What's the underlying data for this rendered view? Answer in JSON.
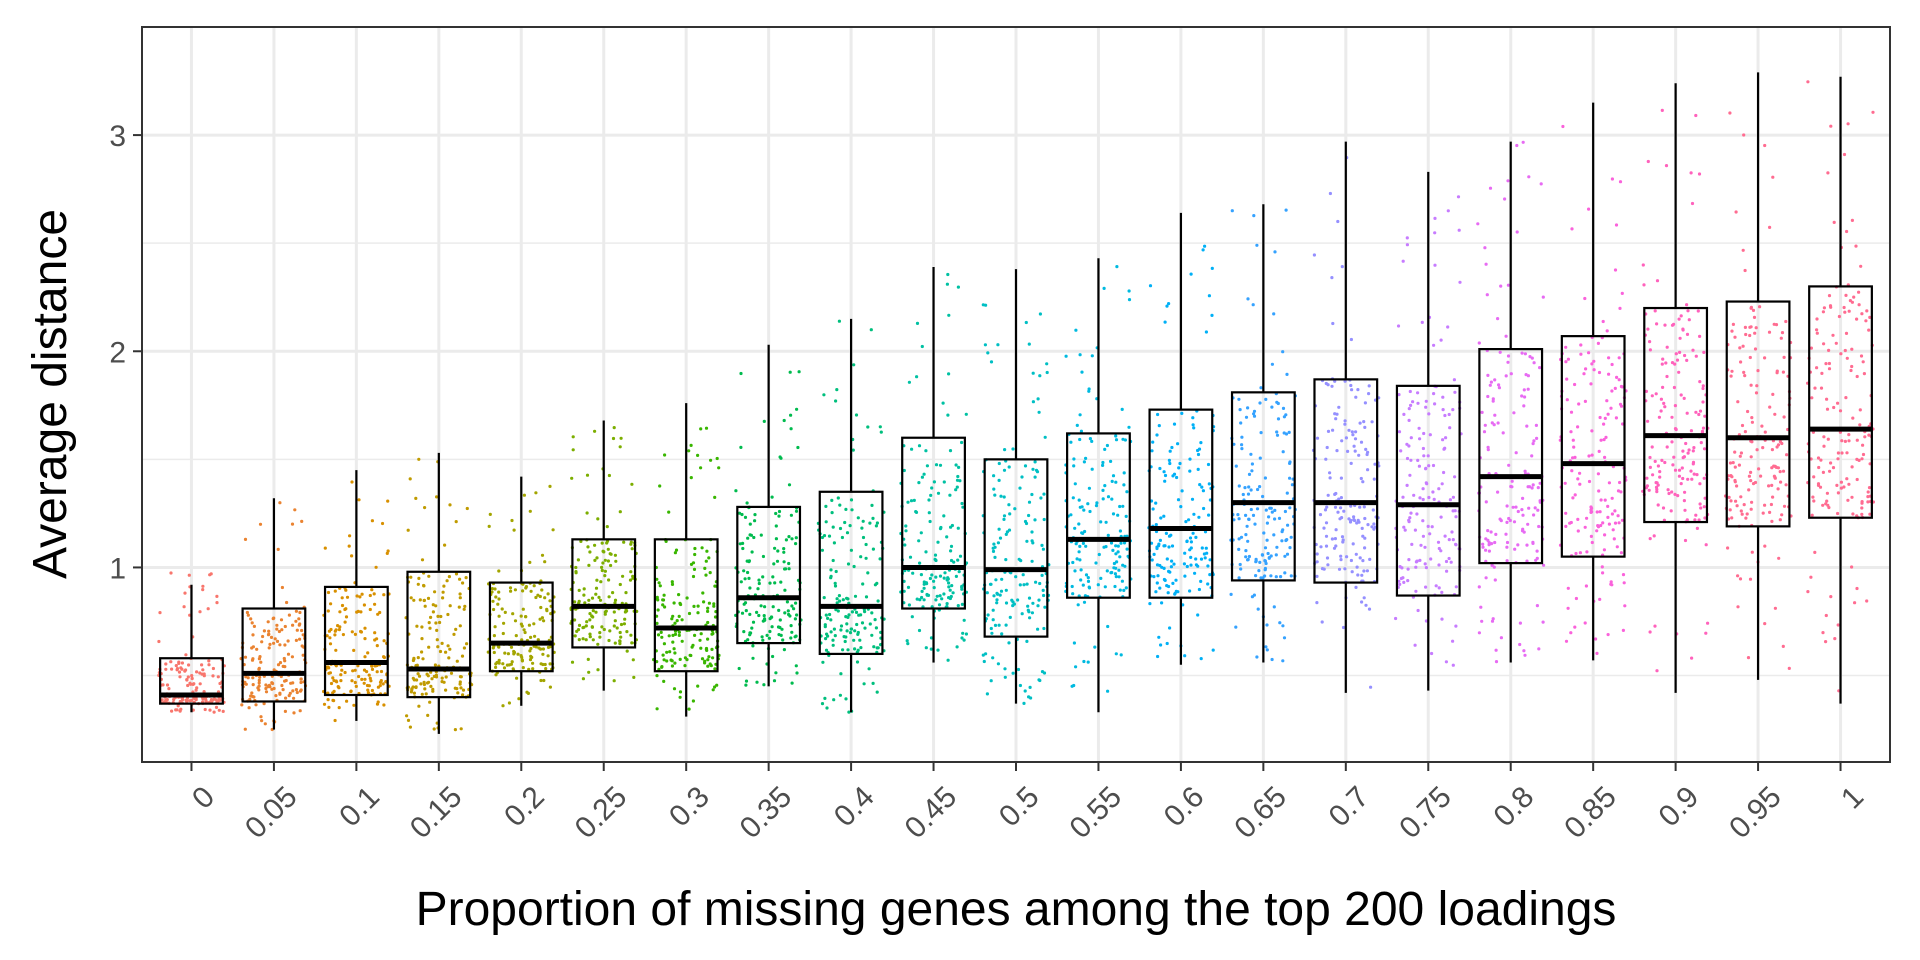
{
  "chart_data": {
    "type": "box",
    "xlabel": "Proportion of missing genes among the top 200 loadings",
    "ylabel": "Average distance",
    "ylim": [
      0.1,
      3.5
    ],
    "yticks": [
      "1",
      "2",
      "3"
    ],
    "grid": true,
    "legend": "none",
    "jitter_points": true,
    "categories": [
      "0",
      "0.05",
      "0.1",
      "0.15",
      "0.2",
      "0.25",
      "0.3",
      "0.35",
      "0.4",
      "0.45",
      "0.5",
      "0.55",
      "0.6",
      "0.65",
      "0.7",
      "0.75",
      "0.8",
      "0.85",
      "0.9",
      "0.95",
      "1"
    ],
    "colors": [
      "#F8766D",
      "#EA8331",
      "#D89000",
      "#C09B00",
      "#A3A500",
      "#7CAE00",
      "#39B600",
      "#00BB4E",
      "#00BF7D",
      "#00C1A3",
      "#00BFC4",
      "#00BAE0",
      "#00B0F6",
      "#35A2FF",
      "#9590FF",
      "#C77CFF",
      "#E76BF3",
      "#FA62DB",
      "#FF62BC",
      "#FF6C91",
      "#FF6C91"
    ],
    "boxes": [
      {
        "category": "0",
        "whisker_low": 0.33,
        "q1": 0.37,
        "median": 0.41,
        "q3": 0.58,
        "whisker_high": 0.92,
        "jitter_max": 1.07
      },
      {
        "category": "0.05",
        "whisker_low": 0.25,
        "q1": 0.38,
        "median": 0.51,
        "q3": 0.81,
        "whisker_high": 1.32,
        "jitter_max": 1.32
      },
      {
        "category": "0.1",
        "whisker_low": 0.29,
        "q1": 0.41,
        "median": 0.56,
        "q3": 0.91,
        "whisker_high": 1.45,
        "jitter_max": 1.45
      },
      {
        "category": "0.15",
        "whisker_low": 0.23,
        "q1": 0.4,
        "median": 0.53,
        "q3": 0.98,
        "whisker_high": 1.53,
        "jitter_max": 1.53
      },
      {
        "category": "0.2",
        "whisker_low": 0.36,
        "q1": 0.52,
        "median": 0.65,
        "q3": 0.93,
        "whisker_high": 1.42,
        "jitter_max": 1.42
      },
      {
        "category": "0.25",
        "whisker_low": 0.43,
        "q1": 0.63,
        "median": 0.82,
        "q3": 1.13,
        "whisker_high": 1.68,
        "jitter_max": 1.68
      },
      {
        "category": "0.3",
        "whisker_low": 0.31,
        "q1": 0.52,
        "median": 0.72,
        "q3": 1.13,
        "whisker_high": 1.76,
        "jitter_max": 1.76
      },
      {
        "category": "0.35",
        "whisker_low": 0.45,
        "q1": 0.65,
        "median": 0.86,
        "q3": 1.28,
        "whisker_high": 2.03,
        "jitter_max": 2.03
      },
      {
        "category": "0.4",
        "whisker_low": 0.33,
        "q1": 0.6,
        "median": 0.82,
        "q3": 1.35,
        "whisker_high": 2.15,
        "jitter_max": 2.15
      },
      {
        "category": "0.45",
        "whisker_low": 0.56,
        "q1": 0.81,
        "median": 1.0,
        "q3": 1.6,
        "whisker_high": 2.39,
        "jitter_max": 2.39
      },
      {
        "category": "0.5",
        "whisker_low": 0.37,
        "q1": 0.68,
        "median": 0.99,
        "q3": 1.5,
        "whisker_high": 2.38,
        "jitter_max": 2.38
      },
      {
        "category": "0.55",
        "whisker_low": 0.33,
        "q1": 0.86,
        "median": 1.13,
        "q3": 1.62,
        "whisker_high": 2.43,
        "jitter_max": 2.43
      },
      {
        "category": "0.6",
        "whisker_low": 0.55,
        "q1": 0.86,
        "median": 1.18,
        "q3": 1.73,
        "whisker_high": 2.64,
        "jitter_max": 2.64
      },
      {
        "category": "0.65",
        "whisker_low": 0.56,
        "q1": 0.94,
        "median": 1.3,
        "q3": 1.81,
        "whisker_high": 2.68,
        "jitter_max": 2.68
      },
      {
        "category": "0.7",
        "whisker_low": 0.42,
        "q1": 0.93,
        "median": 1.3,
        "q3": 1.87,
        "whisker_high": 2.97,
        "jitter_max": 2.97
      },
      {
        "category": "0.75",
        "whisker_low": 0.43,
        "q1": 0.87,
        "median": 1.29,
        "q3": 1.84,
        "whisker_high": 2.83,
        "jitter_max": 2.83
      },
      {
        "category": "0.8",
        "whisker_low": 0.56,
        "q1": 1.02,
        "median": 1.42,
        "q3": 2.01,
        "whisker_high": 2.97,
        "jitter_max": 2.97
      },
      {
        "category": "0.85",
        "whisker_low": 0.57,
        "q1": 1.05,
        "median": 1.48,
        "q3": 2.07,
        "whisker_high": 3.15,
        "jitter_max": 3.15
      },
      {
        "category": "0.9",
        "whisker_low": 0.42,
        "q1": 1.21,
        "median": 1.61,
        "q3": 2.2,
        "whisker_high": 3.24,
        "jitter_max": 3.24
      },
      {
        "category": "0.95",
        "whisker_low": 0.48,
        "q1": 1.19,
        "median": 1.6,
        "q3": 2.23,
        "whisker_high": 3.29,
        "jitter_max": 3.29
      },
      {
        "category": "1",
        "whisker_low": 0.37,
        "q1": 1.23,
        "median": 1.64,
        "q3": 2.3,
        "whisker_high": 3.27,
        "jitter_max": 3.27
      }
    ]
  }
}
